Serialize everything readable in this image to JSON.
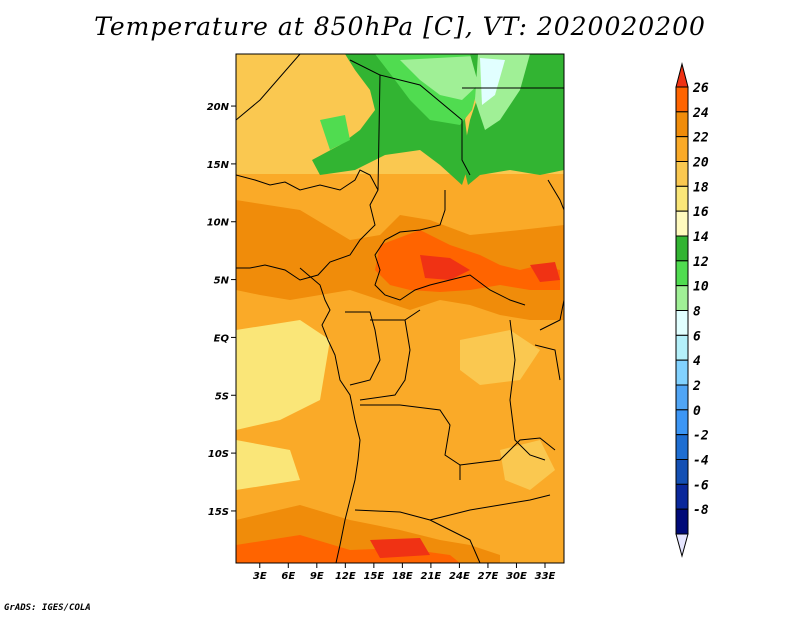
{
  "title": "Temperature at 850hPa [C], VT: 2020020200",
  "credit": "GrADS: IGES/COLA",
  "map": {
    "lat_labels": [
      "20N",
      "15N",
      "10N",
      "5N",
      "EQ",
      "5S",
      "10S",
      "15S"
    ],
    "lon_labels": [
      "3E",
      "6E",
      "9E",
      "12E",
      "15E",
      "18E",
      "21E",
      "24E",
      "27E",
      "30E",
      "33E"
    ],
    "lat_values": [
      20,
      15,
      10,
      5,
      0,
      -5,
      -10,
      -15
    ],
    "lon_values": [
      3,
      6,
      9,
      12,
      15,
      18,
      21,
      24,
      27,
      30,
      33
    ],
    "extent": {
      "lon_min": 0.5,
      "lon_max": 35,
      "lat_min": -19.5,
      "lat_max": 24.5
    }
  },
  "colorbar": {
    "labels": [
      "26",
      "24",
      "22",
      "20",
      "18",
      "16",
      "14",
      "12",
      "10",
      "8",
      "6",
      "4",
      "2",
      "0",
      "-2",
      "-4",
      "-6",
      "-8"
    ],
    "colors": [
      "#f03214",
      "#ff6400",
      "#f08c0a",
      "#faaa28",
      "#fac850",
      "#fae678",
      "#fffabe",
      "#32b432",
      "#50dc50",
      "#a0f096",
      "#e1ffff",
      "#b4f0fa",
      "#82d2ff",
      "#50a5f5",
      "#3c96f5",
      "#1e6ed2",
      "#1450b4",
      "#0a289b",
      "#000a78",
      "#e6e6ff"
    ]
  }
}
